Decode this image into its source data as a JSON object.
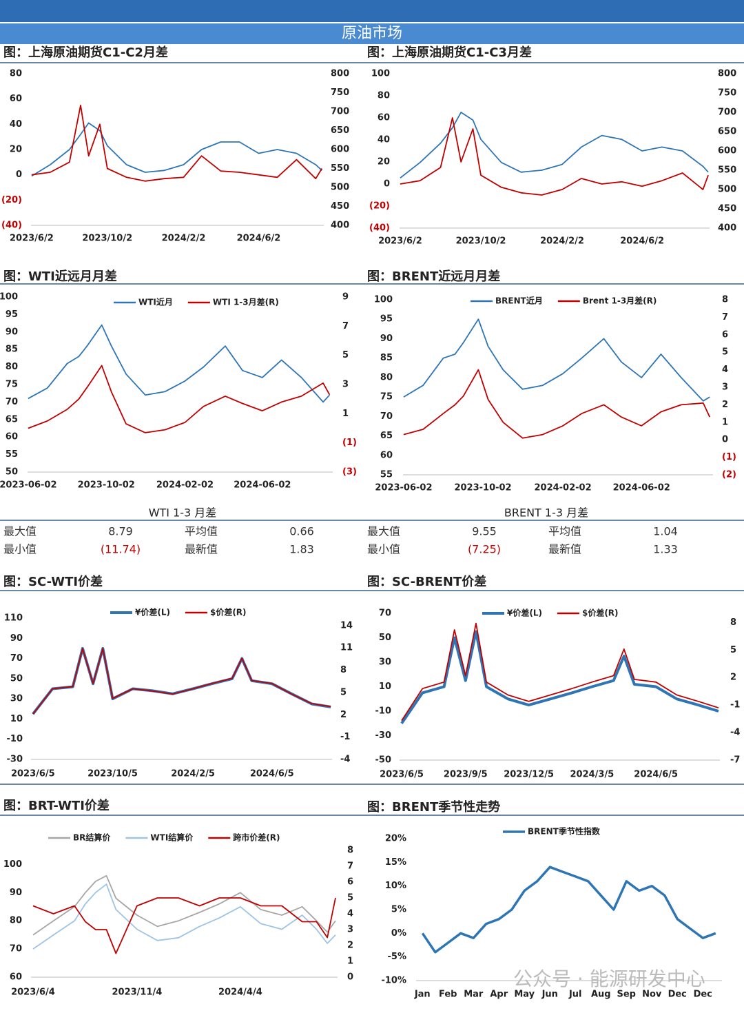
{
  "header": {
    "title": "原油市场"
  },
  "watermark": "公众号 · 能源研发中心",
  "tables": [
    {
      "title": "WTI 1-3 月差",
      "rows": [
        [
          "最大值",
          "8.79",
          "平均值",
          "0.66"
        ],
        [
          "最小值",
          "(11.74)",
          "最新值",
          "1.83"
        ]
      ]
    },
    {
      "title": "BRENT 1-3 月差",
      "rows": [
        [
          "最大值",
          "9.55",
          "平均值",
          "1.04"
        ],
        [
          "最小值",
          "(7.25)",
          "最新值",
          "1.33"
        ]
      ]
    }
  ],
  "chart_data": [
    {
      "type": "line",
      "title": "图：上海原油期货C1-C2月差",
      "x": [
        "2023/6/2",
        "2023/7/2",
        "2023/8/2",
        "2023/8/20",
        "2023/9/2",
        "2023/9/20",
        "2023/10/2",
        "2023/11/2",
        "2023/12/2",
        "2024/1/2",
        "2024/2/2",
        "2024/3/2",
        "2024/4/2",
        "2024/5/2",
        "2024/6/2",
        "2024/7/2",
        "2024/8/2",
        "2024/9/2",
        "2024/9/12"
      ],
      "xlim": [
        "2023/6/1",
        "2024/9/15"
      ],
      "xticks": [
        "2023/6/2",
        "2023/10/2",
        "2024/2/2",
        "2024/6/2"
      ],
      "ylim": [
        -40,
        80
      ],
      "yticks": [
        {
          "value": -40,
          "label": "(40)"
        },
        {
          "value": -20,
          "label": "(20)"
        },
        0,
        20,
        40,
        60,
        80
      ],
      "y2lim": [
        400,
        800
      ],
      "y2ticks": [
        400,
        450,
        500,
        550,
        600,
        650,
        700,
        750,
        800
      ],
      "series": [
        {
          "color": "#2e75b6",
          "axis": "y2",
          "values": [
            530,
            560,
            600,
            640,
            670,
            650,
            610,
            560,
            540,
            545,
            560,
            600,
            620,
            620,
            590,
            600,
            590,
            560,
            545
          ]
        },
        {
          "color": "#c00000",
          "values": [
            0,
            2,
            10,
            55,
            15,
            40,
            5,
            -2,
            -5,
            -3,
            -2,
            15,
            3,
            2,
            0,
            -2,
            12,
            -3,
            5
          ]
        }
      ]
    },
    {
      "type": "line",
      "title": "图：上海原油期货C1-C3月差",
      "x": [
        "2023/6/2",
        "2023/7/2",
        "2023/8/2",
        "2023/8/20",
        "2023/9/2",
        "2023/9/20",
        "2023/10/2",
        "2023/11/2",
        "2023/12/2",
        "2024/1/2",
        "2024/2/2",
        "2024/3/2",
        "2024/4/2",
        "2024/5/2",
        "2024/6/2",
        "2024/7/2",
        "2024/8/2",
        "2024/9/2",
        "2024/9/10"
      ],
      "xlim": [
        "2023/6/1",
        "2024/9/12"
      ],
      "xticks": [
        "2023/6/2",
        "2023/10/2",
        "2024/2/2",
        "2024/6/2"
      ],
      "ylim": [
        -40,
        100
      ],
      "yticks": [
        {
          "value": -40,
          "label": "(40)"
        },
        {
          "value": -20,
          "label": "(20)"
        },
        0,
        20,
        40,
        60,
        80,
        100
      ],
      "y2lim": [
        400,
        800
      ],
      "y2ticks": [
        400,
        450,
        500,
        550,
        600,
        650,
        700,
        750,
        800
      ],
      "series": [
        {
          "color": "#2e75b6",
          "axis": "y2",
          "values": [
            530,
            570,
            620,
            660,
            700,
            680,
            630,
            570,
            545,
            550,
            565,
            610,
            640,
            630,
            600,
            610,
            600,
            560,
            545
          ]
        },
        {
          "color": "#c00000",
          "values": [
            0,
            3,
            15,
            60,
            20,
            50,
            8,
            -3,
            -8,
            -10,
            -5,
            5,
            0,
            2,
            -2,
            3,
            10,
            -5,
            8
          ]
        }
      ]
    },
    {
      "type": "line",
      "title": "图：WTI近远月月差",
      "x": [
        "2023-06-02",
        "2023-07-02",
        "2023-08-02",
        "2023-08-20",
        "2023-09-02",
        "2023-09-25",
        "2023-10-10",
        "2023-11-02",
        "2023-12-02",
        "2024-01-02",
        "2024-02-02",
        "2024-03-02",
        "2024-04-05",
        "2024-05-02",
        "2024-06-02",
        "2024-07-02",
        "2024-08-02",
        "2024-09-05",
        "2024-09-15"
      ],
      "xlim": [
        "2023-06-01",
        "2024-09-20"
      ],
      "xticks": [
        "2023-06-02",
        "2023-10-02",
        "2024-02-02",
        "2024-06-02"
      ],
      "ylim": [
        50,
        100
      ],
      "yticks": [
        50,
        55,
        60,
        65,
        70,
        75,
        80,
        85,
        90,
        95,
        100
      ],
      "y2lim": [
        -3,
        9
      ],
      "y2ticks": [
        {
          "value": -3,
          "label": "(3)"
        },
        {
          "value": -1,
          "label": "(1)"
        },
        1,
        3,
        5,
        7,
        9
      ],
      "series": [
        {
          "name": "WTI近月",
          "color": "#2e75b6",
          "values": [
            71,
            74,
            81,
            83,
            86,
            92,
            86,
            78,
            72,
            73,
            76,
            80,
            86,
            79,
            77,
            82,
            77,
            70,
            72
          ]
        },
        {
          "name": "WTI 1-3月差(R)",
          "color": "#c00000",
          "axis": "y2",
          "values": [
            0,
            0.5,
            1.3,
            2,
            2.8,
            4.3,
            2.5,
            0.3,
            -0.3,
            -0.1,
            0.4,
            1.5,
            2.2,
            1.7,
            1.2,
            1.8,
            2.2,
            3.1,
            2.3
          ]
        }
      ]
    },
    {
      "type": "line",
      "title": "图：BRENT近远月月差",
      "x": [
        "2023-06-02",
        "2023-07-02",
        "2023-08-02",
        "2023-08-20",
        "2023-09-02",
        "2023-09-25",
        "2023-10-10",
        "2023-11-02",
        "2023-12-02",
        "2024-01-02",
        "2024-02-02",
        "2024-03-02",
        "2024-04-05",
        "2024-05-02",
        "2024-06-02",
        "2024-07-02",
        "2024-08-02",
        "2024-09-05",
        "2024-09-15"
      ],
      "xlim": [
        "2023-06-01",
        "2024-09-20"
      ],
      "xticks": [
        "2023-06-02",
        "2023-10-02",
        "2024-02-02",
        "2024-06-02"
      ],
      "ylim": [
        55,
        100
      ],
      "yticks": [
        55,
        60,
        65,
        70,
        75,
        80,
        85,
        90,
        95,
        100
      ],
      "y2lim": [
        -2,
        8
      ],
      "y2ticks": [
        {
          "value": -2,
          "label": "(2)"
        },
        {
          "value": -1,
          "label": "(1)"
        },
        0,
        1,
        2,
        3,
        4,
        5,
        6,
        7,
        8
      ],
      "series": [
        {
          "name": "BRENT近月",
          "color": "#2e75b6",
          "values": [
            75,
            78,
            85,
            86,
            89,
            95,
            88,
            82,
            77,
            78,
            81,
            85,
            90,
            84,
            80,
            86,
            80,
            74,
            75
          ]
        },
        {
          "name": "Brent 1-3月差(R)",
          "color": "#c00000",
          "axis": "y2",
          "values": [
            0.3,
            0.6,
            1.5,
            2,
            2.5,
            4,
            2.3,
            1,
            0.1,
            0.3,
            0.8,
            1.5,
            2,
            1.3,
            0.8,
            1.6,
            2,
            2.1,
            1.3
          ]
        }
      ]
    },
    {
      "type": "line",
      "title": "图：SC-WTI价差",
      "x": [
        "2023/6/5",
        "2023/7/5",
        "2023/8/5",
        "2023/8/20",
        "2023/9/5",
        "2023/9/20",
        "2023/10/5",
        "2023/11/5",
        "2023/12/5",
        "2024/1/5",
        "2024/2/5",
        "2024/3/5",
        "2024/4/5",
        "2024/4/20",
        "2024/5/5",
        "2024/6/5",
        "2024/7/5",
        "2024/8/5",
        "2024/9/3"
      ],
      "xlim": [
        "2023/6/2",
        "2024/9/5"
      ],
      "xticks": [
        "2023/6/5",
        "2023/10/5",
        "2024/2/5",
        "2024/6/5"
      ],
      "ylim": [
        -30,
        110
      ],
      "yticks": [
        -30,
        -10,
        10,
        30,
        50,
        70,
        90,
        110
      ],
      "y2lim": [
        -4,
        15
      ],
      "y2ticks": [
        -4,
        -1,
        2,
        5,
        8,
        11,
        14
      ],
      "series": [
        {
          "name": "¥价差(L)",
          "color": "#2e75b6",
          "width": 4,
          "values": [
            15,
            40,
            42,
            80,
            45,
            80,
            30,
            40,
            38,
            35,
            40,
            45,
            50,
            70,
            48,
            45,
            35,
            25,
            22
          ]
        },
        {
          "name": "$价差(R)",
          "color": "#c00000",
          "axis": "y2",
          "values": [
            2.1,
            5.5,
            5.8,
            10.9,
            6.2,
            10.9,
            4.2,
            5.5,
            5.2,
            4.8,
            5.5,
            6.2,
            6.9,
            9.6,
            6.6,
            6.2,
            4.8,
            3.5,
            3.1
          ]
        }
      ]
    },
    {
      "type": "line",
      "title": "图：SC-BRENT价差",
      "x": [
        "2023/6/5",
        "2023/7/5",
        "2023/8/5",
        "2023/8/20",
        "2023/9/5",
        "2023/9/20",
        "2023/10/5",
        "2023/11/5",
        "2023/12/5",
        "2024/1/5",
        "2024/2/5",
        "2024/3/5",
        "2024/4/5",
        "2024/4/20",
        "2024/5/5",
        "2024/6/5",
        "2024/7/5",
        "2024/8/5",
        "2024/9/3"
      ],
      "xlim": [
        "2023/6/2",
        "2024/9/5"
      ],
      "xticks": [
        "2023/6/5",
        "2023/9/5",
        "2023/12/5",
        "2024/3/5",
        "2024/6/5"
      ],
      "ylim": [
        -50,
        70
      ],
      "yticks": [
        -50,
        -30,
        -10,
        10,
        30,
        50,
        70
      ],
      "y2lim": [
        -7,
        9
      ],
      "y2ticks": [
        -7,
        -4,
        -1,
        2,
        5,
        8
      ],
      "series": [
        {
          "name": "¥价差(L)",
          "color": "#2e75b6",
          "width": 4,
          "values": [
            -20,
            5,
            10,
            50,
            15,
            55,
            10,
            0,
            -5,
            0,
            5,
            10,
            15,
            35,
            12,
            10,
            0,
            -5,
            -10
          ]
        },
        {
          "name": "$价差(R)",
          "color": "#c00000",
          "axis": "y2",
          "values": [
            -2.7,
            0.8,
            1.5,
            7.2,
            2.2,
            7.9,
            1.5,
            0.1,
            -0.6,
            0.1,
            0.8,
            1.5,
            2.2,
            5.1,
            1.8,
            1.5,
            0.1,
            -0.6,
            -1.3
          ]
        }
      ]
    },
    {
      "type": "line",
      "title": "图：BRT-WTI价差",
      "x": [
        "2023/6/4",
        "2023/7/4",
        "2023/8/4",
        "2023/8/20",
        "2023/9/4",
        "2023/9/20",
        "2023/10/4",
        "2023/11/4",
        "2023/12/4",
        "2024/1/4",
        "2024/2/4",
        "2024/3/4",
        "2024/4/4",
        "2024/5/4",
        "2024/6/4",
        "2024/7/4",
        "2024/7/25",
        "2024/8/10",
        "2024/8/22"
      ],
      "xlim": [
        "2023/6/1",
        "2024/8/25"
      ],
      "xticks": [
        "2023/6/4",
        "2023/11/4",
        "2024/4/4"
      ],
      "ylim": [
        60,
        105
      ],
      "yticks": [
        60,
        70,
        80,
        90,
        100
      ],
      "y2lim": [
        0,
        8
      ],
      "y2ticks": [
        0,
        1,
        2,
        3,
        4,
        5,
        6,
        7,
        8
      ],
      "series": [
        {
          "name": "BR结算价",
          "color": "#a6a6a6",
          "values": [
            75,
            80,
            85,
            90,
            94,
            96,
            88,
            82,
            78,
            80,
            83,
            86,
            90,
            84,
            82,
            85,
            80,
            76,
            80
          ]
        },
        {
          "name": "WTI结算价",
          "color": "#9dc3e6",
          "values": [
            70,
            75,
            80,
            86,
            90,
            93,
            84,
            77,
            73,
            74,
            78,
            81,
            85,
            79,
            77,
            82,
            77,
            72,
            75
          ]
        },
        {
          "name": "跨市价差(R)",
          "color": "#c00000",
          "axis": "y2",
          "values": [
            4.5,
            4,
            4.5,
            3.5,
            3,
            3,
            1.5,
            4.5,
            5,
            5,
            4.5,
            5,
            5,
            4.5,
            4.5,
            3.5,
            3.5,
            2.5,
            5
          ]
        }
      ]
    },
    {
      "type": "line",
      "title": "图：BRENT季节性走势",
      "categories": [
        "Jan",
        null,
        "Feb",
        null,
        "Mar",
        null,
        "Apr",
        null,
        "May",
        null,
        "Jun",
        null,
        "Jul",
        null,
        "Aug",
        null,
        "Sep",
        null,
        "Nov",
        null,
        "Dec",
        null,
        "Dec",
        null
      ],
      "ylim": [
        -10,
        20
      ],
      "yticks": [
        {
          "value": -10,
          "label": "-10%"
        },
        {
          "value": -5,
          "label": "-5%"
        },
        {
          "value": 0,
          "label": "0%"
        },
        {
          "value": 5,
          "label": "5%"
        },
        {
          "value": 10,
          "label": "10%"
        },
        {
          "value": 15,
          "label": "15%"
        },
        {
          "value": 20,
          "label": "20%"
        }
      ],
      "series": [
        {
          "name": "BRENT季节性指数",
          "color": "#2e75b6",
          "width": 3.5,
          "values": [
            0,
            -4,
            -2,
            0,
            -1,
            2,
            3,
            5,
            9,
            11,
            14,
            13,
            12,
            11,
            8,
            5,
            11,
            9,
            10,
            8,
            3,
            1,
            -1,
            0
          ]
        }
      ]
    }
  ]
}
